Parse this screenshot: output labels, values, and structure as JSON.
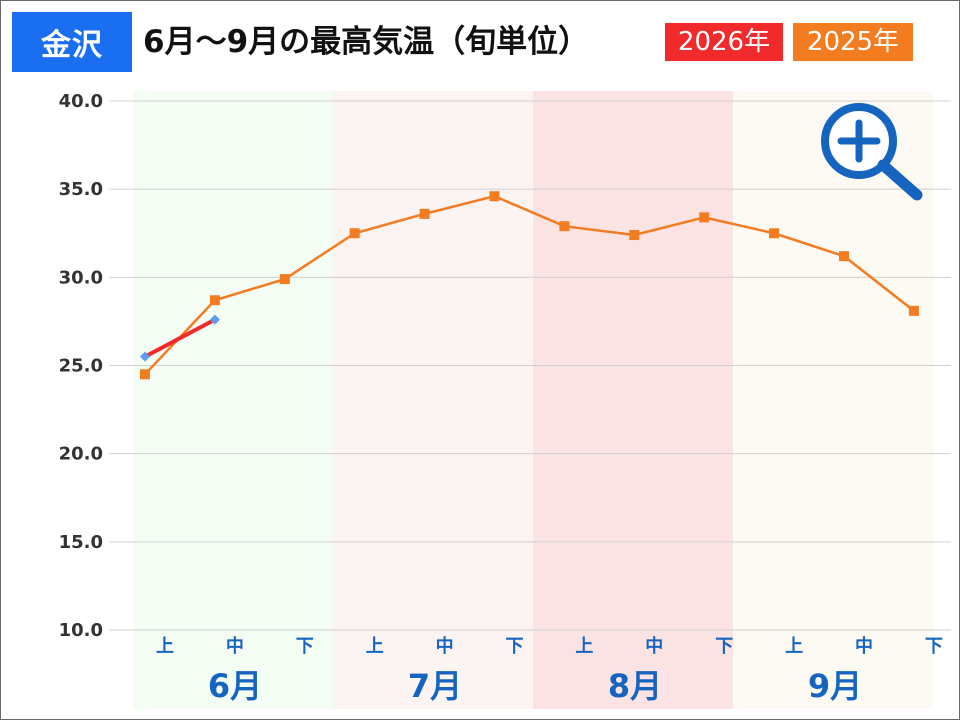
{
  "header": {
    "city": "金沢",
    "title": "6月～9月の最高気温（旬単位）",
    "legend": [
      {
        "label": "2026年",
        "color": "#f12b2b"
      },
      {
        "label": "2025年",
        "color": "#f37b20"
      }
    ]
  },
  "colors": {
    "city_badge": "#1a6ff0",
    "label_blue": "#1565c0",
    "grid": "#d0d0d0",
    "marker_2026": "#5b9cf0"
  },
  "zoom_icon": "zoom-in-icon",
  "chart_data": {
    "type": "line",
    "ylim": [
      10,
      40
    ],
    "yticks": [
      "40.0",
      "35.0",
      "30.0",
      "25.0",
      "20.0",
      "15.0",
      "10.0"
    ],
    "dekads": [
      "上",
      "中",
      "下",
      "上",
      "中",
      "下",
      "上",
      "中",
      "下",
      "上",
      "中",
      "下"
    ],
    "months": [
      {
        "label": "6月",
        "bg": "#f3fdf3"
      },
      {
        "label": "7月",
        "bg": "#fcf3f3"
      },
      {
        "label": "8月",
        "bg": "#fce3e3"
      },
      {
        "label": "9月",
        "bg": "#fdf9f3"
      }
    ],
    "series": [
      {
        "name": "2025年",
        "color": "#f37b20",
        "values": [
          24.5,
          28.7,
          29.9,
          32.5,
          33.6,
          34.6,
          32.9,
          32.4,
          33.4,
          32.5,
          31.2,
          28.1
        ]
      },
      {
        "name": "2026年",
        "color": "#f12b2b",
        "values": [
          25.5,
          27.6
        ]
      }
    ]
  }
}
